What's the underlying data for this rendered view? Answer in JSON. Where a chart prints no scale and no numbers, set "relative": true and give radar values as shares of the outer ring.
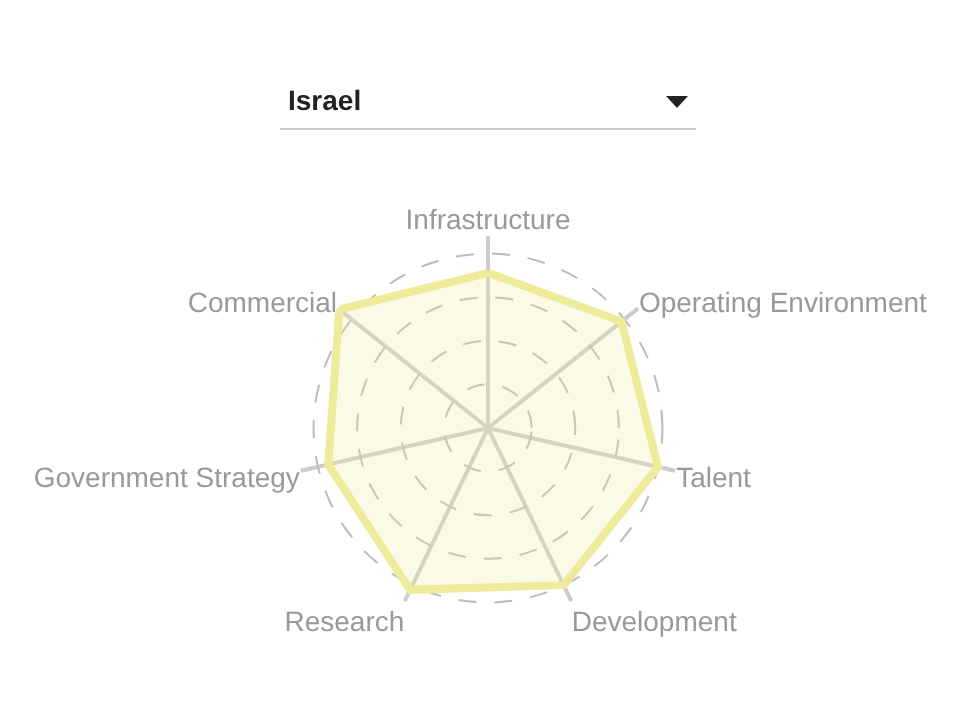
{
  "chart_data": {
    "type": "radar",
    "title": "Israel",
    "relative": true,
    "grid": true,
    "categories": [
      "Infrastructure",
      "Operating Environment",
      "Talent",
      "Development",
      "Research",
      "Government Strategy",
      "Commercial"
    ],
    "series": [
      {
        "color": "#eeeb9a",
        "values": [
          0.89,
          0.98,
          1.0,
          1.0,
          1.03,
          0.94,
          1.09
        ]
      }
    ]
  }
}
